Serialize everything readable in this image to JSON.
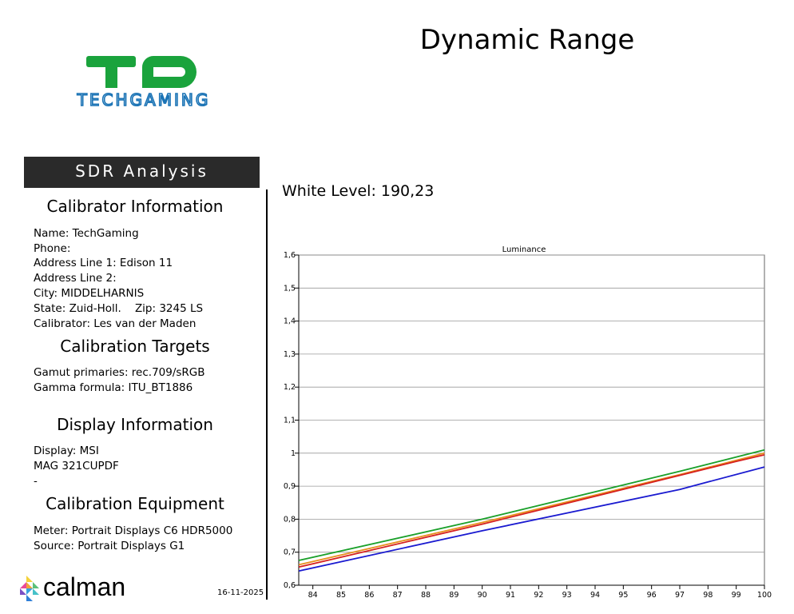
{
  "page": {
    "title": "Dynamic Range",
    "logo_text": "TECHGAMING",
    "banner": "SDR Analysis",
    "white_level": "White Level: 190,23",
    "date": "16-11-2025",
    "footer_brand": "calman"
  },
  "colors": {
    "logo_green": "#1aa33c",
    "logo_blue": "#1a73b5",
    "banner_bg": "#2a2a2a"
  },
  "sections": {
    "calibrator": {
      "heading": "Calibrator Information",
      "lines": [
        "Name: TechGaming",
        "Phone:",
        "Address Line 1: Edison 11",
        "Address Line 2:",
        "City: MIDDELHARNIS",
        "State: Zuid-Holl.    Zip: 3245 LS",
        "Calibrator: Les van der Maden"
      ]
    },
    "targets": {
      "heading": "Calibration Targets",
      "lines": [
        "Gamut primaries: rec.709/sRGB",
        "Gamma formula: ITU_BT1886"
      ]
    },
    "display": {
      "heading": "Display Information",
      "lines": [
        "Display: MSI",
        "MAG 321CUPDF",
        "-"
      ]
    },
    "equipment": {
      "heading": "Calibration Equipment",
      "lines": [
        "Meter: Portrait Displays C6 HDR5000",
        "Source: Portrait Displays G1"
      ]
    }
  },
  "chart_data": {
    "type": "line",
    "title": "Luminance",
    "xlabel": "",
    "ylabel": "",
    "xlim": [
      83.5,
      100
    ],
    "ylim": [
      0.6,
      1.6
    ],
    "x_ticks": [
      "84",
      "85",
      "86",
      "87",
      "88",
      "89",
      "90",
      "91",
      "92",
      "93",
      "94",
      "95",
      "96",
      "97",
      "98",
      "99",
      "100"
    ],
    "y_ticks": [
      "0,6",
      "0,7",
      "0,8",
      "0,9",
      "1",
      "1,1",
      "1,2",
      "1,3",
      "1,4",
      "1,5",
      "1,6"
    ],
    "grid": "horizontal",
    "series": [
      {
        "color": "#1aa02a",
        "x": [
          83.5,
          90,
          97,
          100
        ],
        "y": [
          0.675,
          0.8,
          0.945,
          1.01
        ]
      },
      {
        "color": "#e8901e",
        "x": [
          83.5,
          90,
          97,
          100
        ],
        "y": [
          0.662,
          0.79,
          0.935,
          1.0
        ]
      },
      {
        "color": "#d62020",
        "x": [
          83.5,
          90,
          99,
          100
        ],
        "y": [
          0.655,
          0.785,
          0.975,
          0.995
        ]
      },
      {
        "color": "#1a1ad0",
        "x": [
          83.5,
          90,
          97,
          100
        ],
        "y": [
          0.643,
          0.765,
          0.89,
          0.958
        ]
      }
    ]
  }
}
